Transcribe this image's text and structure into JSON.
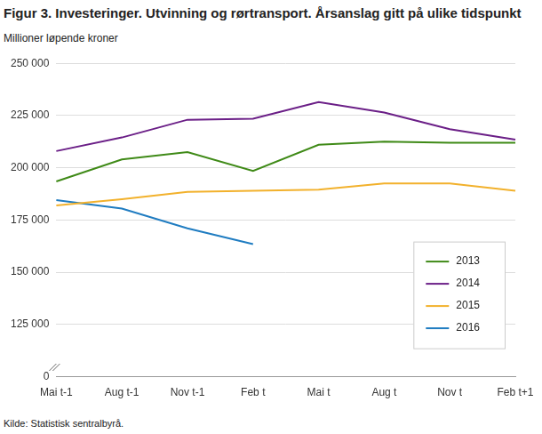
{
  "chart_data": {
    "type": "line",
    "title": "Figur 3. Investeringer. Utvinning og rørtransport. Årsanslag gitt på ulike tidspunkt",
    "y_axis_label": "Millioner løpende kroner",
    "source": "Kilde: Statistisk sentralbyrå.",
    "categories": [
      "Mai t-1",
      "Aug t-1",
      "Nov t-1",
      "Feb t",
      "Mai t",
      "Aug t",
      "Nov t",
      "Feb t+1"
    ],
    "series": [
      {
        "name": "2013",
        "color": "#3f8a17",
        "values": [
          193500,
          204000,
          207500,
          198500,
          211000,
          212500,
          212000,
          212000
        ]
      },
      {
        "name": "2014",
        "color": "#6b1f87",
        "values": [
          208000,
          214500,
          223000,
          223500,
          231500,
          226500,
          218500,
          213500
        ]
      },
      {
        "name": "2015",
        "color": "#f2b12c",
        "values": [
          182000,
          185000,
          188500,
          189000,
          189500,
          192500,
          192500,
          189000
        ]
      },
      {
        "name": "2016",
        "color": "#1f7cc1",
        "values": [
          184500,
          180500,
          171000,
          163500,
          null,
          null,
          null,
          null
        ]
      }
    ],
    "ylim": [
      0,
      250000
    ],
    "yticks": [
      0,
      {
        "value": 125000,
        "label": "125 000"
      },
      {
        "value": 150000,
        "label": "150 000"
      },
      {
        "value": 175000,
        "label": "175 000"
      },
      {
        "value": 200000,
        "label": "200 000"
      },
      {
        "value": 225000,
        "label": "225 000"
      },
      {
        "value": 250000,
        "label": "250 000"
      }
    ],
    "grid": true,
    "legend": "bottom right"
  }
}
